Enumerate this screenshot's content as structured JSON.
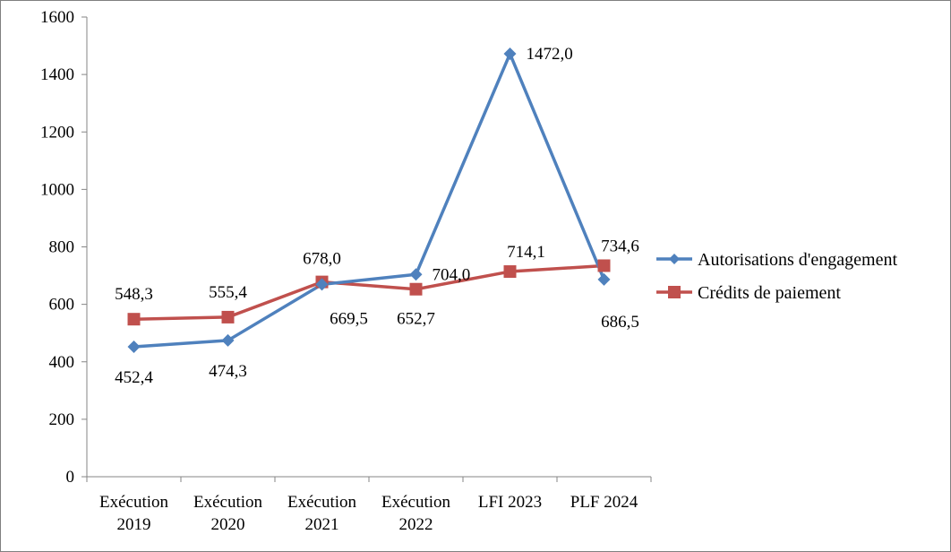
{
  "chart_data": {
    "type": "line",
    "categories": [
      [
        "Exécution",
        "2019"
      ],
      [
        "Exécution",
        "2020"
      ],
      [
        "Exécution",
        "2021"
      ],
      [
        "Exécution",
        "2022"
      ],
      [
        "LFI 2023"
      ],
      [
        "PLF 2024"
      ]
    ],
    "ylim": [
      0,
      1600
    ],
    "yticks": [
      "0",
      "200",
      "400",
      "600",
      "800",
      "1000",
      "1200",
      "1400",
      "1600"
    ],
    "grid": false,
    "legend_position": "right",
    "series": [
      {
        "name": "Autorisations d'engagement",
        "color": "#4F81BD",
        "marker": "diamond",
        "values": [
          452.4,
          474.3,
          669.5,
          704.0,
          1472.0,
          686.5
        ],
        "labels": [
          "452,4",
          "474,3",
          "669,5",
          "704,0",
          "1472,0",
          "686,5"
        ]
      },
      {
        "name": "Crédits de paiement",
        "color": "#C0504D",
        "marker": "square",
        "values": [
          548.3,
          555.4,
          678.0,
          652.7,
          714.1,
          734.6
        ],
        "labels": [
          "548,3",
          "555,4",
          "678,0",
          "652,7",
          "714,1",
          "734,6"
        ]
      }
    ]
  }
}
